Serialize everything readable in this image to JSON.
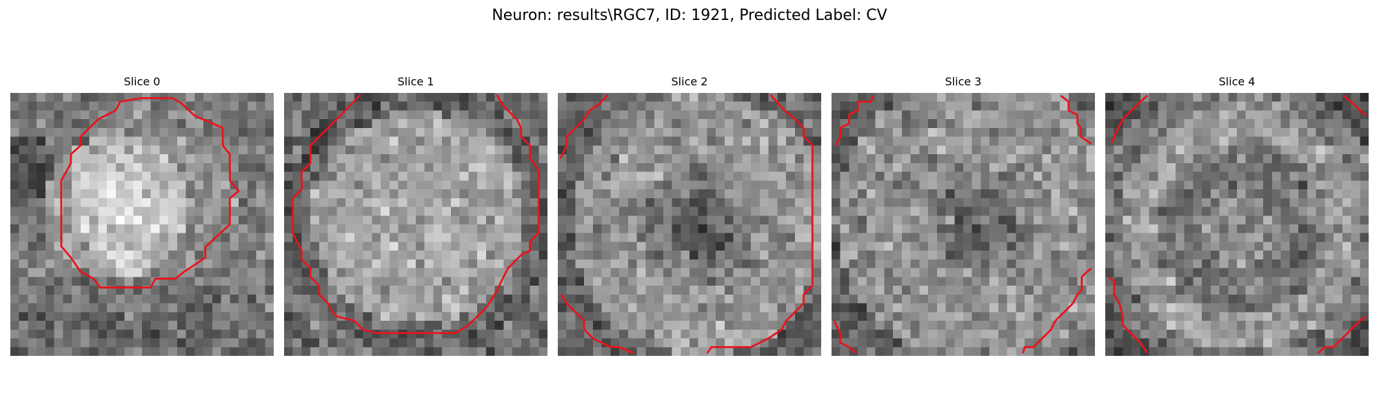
{
  "title": "Neuron: results\\RGC7, ID: 1921, Predicted Label: CV",
  "contour_color": "#e8141b",
  "panels": [
    {
      "title": "Slice 0",
      "pattern": "blob-left"
    },
    {
      "title": "Slice 1",
      "pattern": "bright-disc"
    },
    {
      "title": "Slice 2",
      "pattern": "ring-dark-center"
    },
    {
      "title": "Slice 3",
      "pattern": "noisy-ring"
    },
    {
      "title": "Slice 4",
      "pattern": "dark-ring"
    }
  ]
}
